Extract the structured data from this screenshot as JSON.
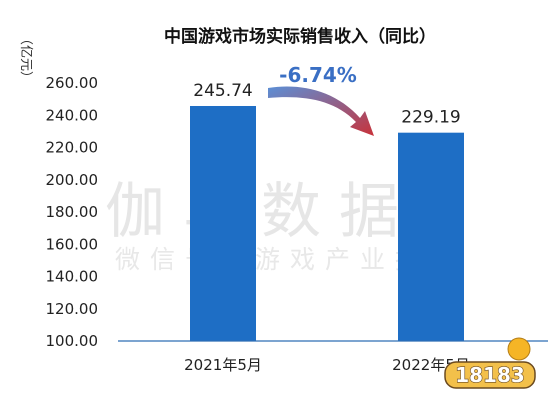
{
  "watermark": {
    "main": "伽马数据",
    "sub": "微信号：游戏产业报告",
    "logo_text": "18183"
  },
  "colors": {
    "bar": "#1e6ec5",
    "axis": "#2d6db5",
    "change_text": "#3a6fc4",
    "arrow_start": "#5b8fd6",
    "arrow_end": "#c8323a"
  },
  "chart_data": {
    "type": "bar",
    "title": "中国游戏市场实际销售收入（同比）",
    "ylabel": "（亿元）",
    "xlabel": "",
    "categories": [
      "2021年5月",
      "2022年5月"
    ],
    "values": [
      245.74,
      229.19
    ],
    "data_labels": [
      "245.74",
      "229.19"
    ],
    "ylim": [
      100,
      260
    ],
    "yticks": [
      "100.00",
      "120.00",
      "140.00",
      "160.00",
      "180.00",
      "200.00",
      "220.00",
      "240.00",
      "260.00"
    ],
    "grid": false,
    "legend": "none",
    "annotation": {
      "text": "-6.74%",
      "meaning": "year-over-year change"
    }
  }
}
